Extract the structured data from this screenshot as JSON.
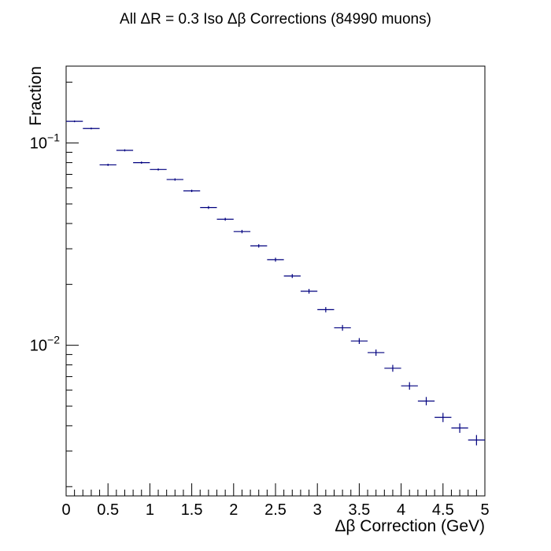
{
  "chart_data": {
    "type": "scatter",
    "title": "All ΔR = 0.3 Iso Δβ Corrections (84990 muons)",
    "xlabel": "Δβ Correction (GeV)",
    "ylabel": "Fraction",
    "xlim": [
      0,
      5
    ],
    "ylim": [
      0.0018,
      0.24
    ],
    "log_y": true,
    "grid": false,
    "legend": "none",
    "x_ticks": [
      "0",
      "0.5",
      "1",
      "1.5",
      "2",
      "2.5",
      "3",
      "3.5",
      "4",
      "4.5",
      "5"
    ],
    "y_ticks": [
      {
        "base": "10",
        "exp": "−1",
        "value": 0.1
      },
      {
        "base": "10",
        "exp": "−2",
        "value": 0.01
      }
    ],
    "marker_color": "#00007f",
    "bin_width": 0.2,
    "x": [
      0.1,
      0.3,
      0.5,
      0.7,
      0.9,
      1.1,
      1.3,
      1.5,
      1.7,
      1.9,
      2.1,
      2.3,
      2.5,
      2.7,
      2.9,
      3.1,
      3.3,
      3.5,
      3.7,
      3.9,
      4.1,
      4.3,
      4.5,
      4.7,
      4.9
    ],
    "values": [
      0.128,
      0.118,
      0.078,
      0.092,
      0.08,
      0.074,
      0.066,
      0.058,
      0.048,
      0.042,
      0.0365,
      0.031,
      0.0265,
      0.022,
      0.0185,
      0.015,
      0.0122,
      0.0105,
      0.0092,
      0.0077,
      0.0063,
      0.0053,
      0.0044,
      0.0039,
      0.0034
    ],
    "errors": [
      0.0012,
      0.0012,
      0.001,
      0.0011,
      0.001,
      0.0009,
      0.0009,
      0.0008,
      0.0008,
      0.0007,
      0.0007,
      0.0006,
      0.0006,
      0.0005,
      0.0005,
      0.00045,
      0.0004,
      0.00035,
      0.00033,
      0.0003,
      0.00027,
      0.00025,
      0.00023,
      0.00021,
      0.0002
    ]
  }
}
